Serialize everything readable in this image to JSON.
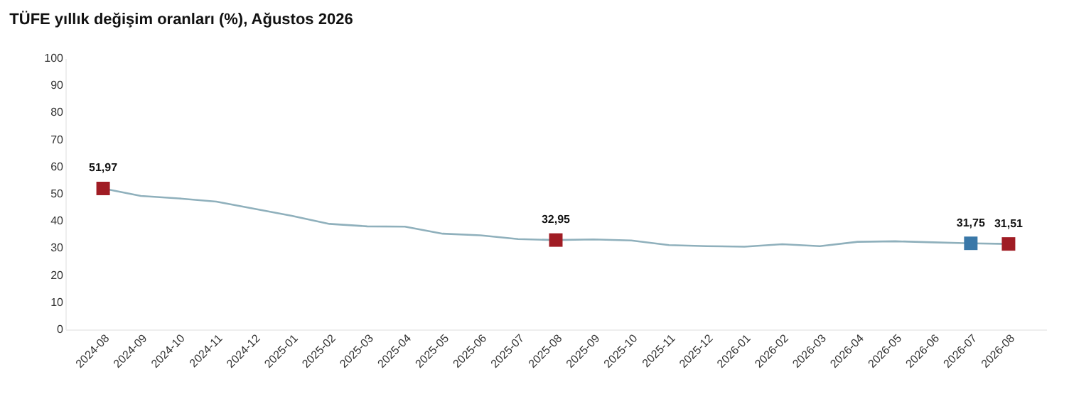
{
  "chart_data": {
    "type": "line",
    "title": "TÜFE yıllık değişim oranları (%), Ağustos 2026",
    "categories": [
      "2024-08",
      "2024-09",
      "2024-10",
      "2024-11",
      "2024-12",
      "2025-01",
      "2025-02",
      "2025-03",
      "2025-04",
      "2025-05",
      "2025-06",
      "2025-07",
      "2025-08",
      "2025-09",
      "2025-10",
      "2025-11",
      "2025-12",
      "2026-01",
      "2026-02",
      "2026-03",
      "2026-04",
      "2026-05",
      "2026-06",
      "2026-07",
      "2026-08"
    ],
    "series": [
      {
        "color": "#8fb0bc",
        "marker": "none",
        "values": [
          51.97,
          49.2,
          48.3,
          47.1,
          44.5,
          41.9,
          38.9,
          38.0,
          37.9,
          35.3,
          34.7,
          33.3,
          32.95,
          33.2,
          32.8,
          31.1,
          30.7,
          30.5,
          31.4,
          30.7,
          32.3,
          32.5,
          32.1,
          31.75,
          31.51
        ]
      },
      {
        "type": "scatter",
        "marker": "square",
        "values": [
          51.97,
          null,
          null,
          null,
          null,
          null,
          null,
          null,
          null,
          null,
          null,
          null,
          32.95,
          null,
          null,
          null,
          null,
          null,
          null,
          null,
          null,
          null,
          null,
          31.75,
          31.51
        ],
        "colors": [
          "#a01c24",
          null,
          null,
          null,
          null,
          null,
          null,
          null,
          null,
          null,
          null,
          null,
          "#a01c24",
          null,
          null,
          null,
          null,
          null,
          null,
          null,
          null,
          null,
          null,
          "#3a78a8",
          "#a01c24"
        ],
        "value_labels": [
          "51,97",
          null,
          null,
          null,
          null,
          null,
          null,
          null,
          null,
          null,
          null,
          null,
          "32,95",
          null,
          null,
          null,
          null,
          null,
          null,
          null,
          null,
          null,
          null,
          "31,75",
          "31,51"
        ]
      }
    ],
    "ylim": [
      0,
      100
    ],
    "yticks": [
      0,
      10,
      20,
      30,
      40,
      50,
      60,
      70,
      80,
      90,
      100
    ],
    "grid": false,
    "legend": false
  }
}
